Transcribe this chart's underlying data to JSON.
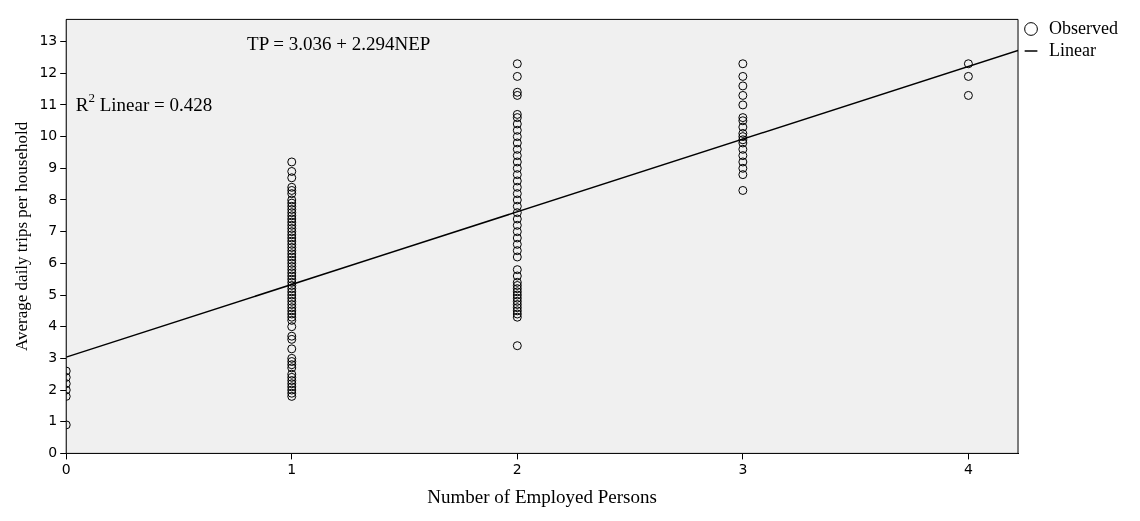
{
  "chart_data": {
    "type": "scatter",
    "xlabel": "Number of Employed Persons",
    "ylabel": "Average daily trips per household",
    "xlim": [
      0,
      4.22
    ],
    "xticks": [
      0,
      1,
      2,
      3,
      4
    ],
    "ylim": [
      0,
      13.7
    ],
    "yticks": [
      0,
      1,
      2,
      3,
      4,
      5,
      6,
      7,
      8,
      9,
      10,
      11,
      12,
      13
    ],
    "legend": "right",
    "annotations": [
      "TP = 3.036 + 2.294NEP",
      "R$^{2}$ Linear = 0.428"
    ],
    "series": [
      {
        "name": "Observed",
        "color": "#000000",
        "marker": "circle",
        "x": [
          0,
          0,
          0,
          0,
          0,
          0,
          1,
          1,
          1,
          1,
          1,
          1,
          1,
          1,
          1,
          1,
          1,
          1,
          1,
          1,
          1,
          1,
          1,
          1,
          1,
          1,
          1,
          1,
          1,
          1,
          1,
          1,
          1,
          1,
          1,
          1,
          1,
          1,
          1,
          1,
          1,
          1,
          1,
          1,
          1,
          1,
          1,
          1,
          1,
          1,
          1,
          1,
          1,
          1,
          1,
          1,
          1,
          1,
          1,
          1,
          1,
          1,
          1,
          1,
          1,
          1,
          1,
          2,
          2,
          2,
          2,
          2,
          2,
          2,
          2,
          2,
          2,
          2,
          2,
          2,
          2,
          2,
          2,
          2,
          2,
          2,
          2,
          2,
          2,
          2,
          2,
          2,
          2,
          2,
          2,
          2,
          2,
          2,
          2,
          2,
          2,
          2,
          2,
          2,
          2,
          2,
          2,
          2,
          2,
          2,
          3,
          3,
          3,
          3,
          3,
          3,
          3,
          3,
          3,
          3,
          3,
          3,
          3,
          3,
          3,
          3,
          3,
          3,
          4,
          4,
          4
        ],
        "values": [
          0.9,
          1.8,
          2.0,
          2.2,
          2.4,
          2.6,
          1.8,
          1.9,
          2.0,
          2.1,
          2.2,
          2.3,
          2.4,
          2.5,
          2.7,
          2.8,
          2.9,
          3.0,
          3.3,
          3.6,
          3.7,
          4.0,
          4.2,
          4.3,
          4.4,
          4.5,
          4.6,
          4.7,
          4.8,
          4.9,
          5.0,
          5.1,
          5.2,
          5.3,
          5.4,
          5.5,
          5.6,
          5.7,
          5.8,
          5.9,
          6.0,
          6.1,
          6.2,
          6.3,
          6.4,
          6.5,
          6.6,
          6.7,
          6.8,
          6.9,
          7.0,
          7.1,
          7.2,
          7.3,
          7.4,
          7.5,
          7.6,
          7.7,
          7.8,
          7.9,
          8.0,
          8.2,
          8.3,
          8.4,
          8.7,
          8.9,
          9.2,
          3.4,
          4.3,
          4.4,
          4.5,
          4.6,
          4.7,
          4.8,
          4.9,
          5.0,
          5.1,
          5.2,
          5.3,
          5.4,
          5.6,
          5.8,
          6.2,
          6.4,
          6.6,
          6.8,
          7.0,
          7.2,
          7.4,
          7.6,
          7.8,
          8.0,
          8.2,
          8.4,
          8.6,
          8.8,
          9.0,
          9.2,
          9.4,
          9.6,
          9.8,
          10.0,
          10.2,
          10.4,
          10.6,
          10.7,
          11.3,
          11.4,
          11.9,
          12.3,
          8.3,
          8.8,
          9.0,
          9.2,
          9.4,
          9.6,
          9.8,
          9.9,
          10.0,
          10.1,
          10.3,
          10.5,
          10.6,
          11.0,
          11.3,
          11.6,
          11.9,
          12.3,
          11.3,
          11.9,
          12.3
        ]
      },
      {
        "name": "Linear",
        "type": "line",
        "color": "#000000",
        "x": [
          0,
          4.22
        ],
        "values": [
          3.04,
          12.72
        ]
      }
    ]
  }
}
